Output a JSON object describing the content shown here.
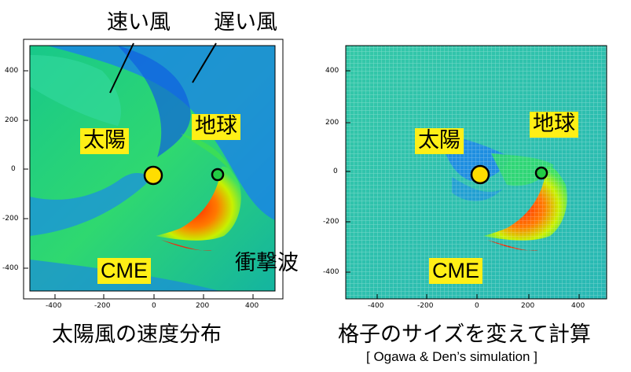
{
  "labels": {
    "fast_wind": "速い風",
    "slow_wind": "遅い風",
    "shock": "衝撃波",
    "sun_left": "太陽",
    "earth_left": "地球",
    "cme_left": "CME",
    "sun_right": "太陽",
    "earth_right": "地球",
    "cme_right": "CME"
  },
  "captions": {
    "left": "太陽風の速度分布",
    "right": "格子のサイズを変えて計算",
    "credit": "[ Ogawa & Den’s simulation ]"
  },
  "axes": {
    "y_ticks": [
      "400",
      "200",
      "0",
      "-200",
      "-400"
    ],
    "x_ticks": [
      "-400",
      "-200",
      "0",
      "200",
      "400"
    ]
  },
  "colors": {
    "tag_background": "#ffef16",
    "sun_fill": "#ffdd00",
    "earth_fill": "#22cc44"
  }
}
